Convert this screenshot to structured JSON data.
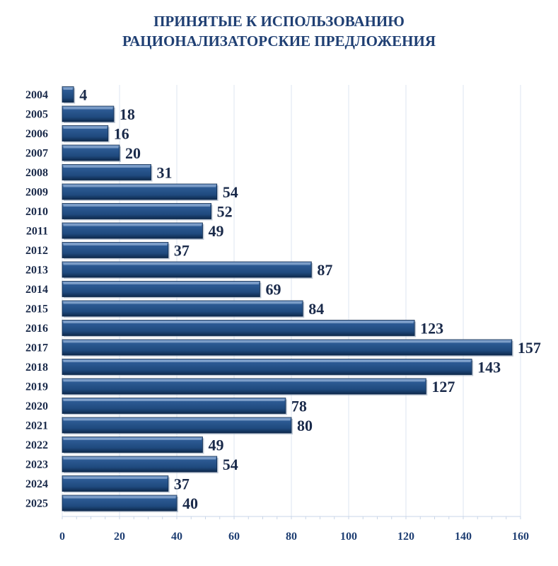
{
  "chart_data": {
    "type": "bar",
    "orientation": "horizontal",
    "title_lines": [
      "ПРИНЯТЫЕ К ИСПОЛЬЗОВАНИЮ",
      "РАЦИОНАЛИЗАТОРСКИЕ ПРЕДЛОЖЕНИЯ"
    ],
    "categories": [
      "2004",
      "2005",
      "2006",
      "2007",
      "2008",
      "2009",
      "2010",
      "2011",
      "2012",
      "2013",
      "2014",
      "2015",
      "2016",
      "2017",
      "2018",
      "2019",
      "2020",
      "2021",
      "2022",
      "2023",
      "2024",
      "2025"
    ],
    "values": [
      4,
      18,
      16,
      20,
      31,
      54,
      52,
      49,
      37,
      87,
      69,
      84,
      123,
      157,
      143,
      127,
      78,
      80,
      49,
      54,
      37,
      40
    ],
    "xlim": [
      0,
      160
    ],
    "xticks": [
      0,
      20,
      40,
      60,
      80,
      100,
      120,
      140,
      160
    ],
    "grid": "vertical",
    "colors": {
      "bar": "#1F4A7E",
      "bar_light": "#4F7BB0",
      "bar_dark": "#0E2A4D",
      "title": "#1F3F73",
      "grid": "#dce6f2"
    }
  }
}
